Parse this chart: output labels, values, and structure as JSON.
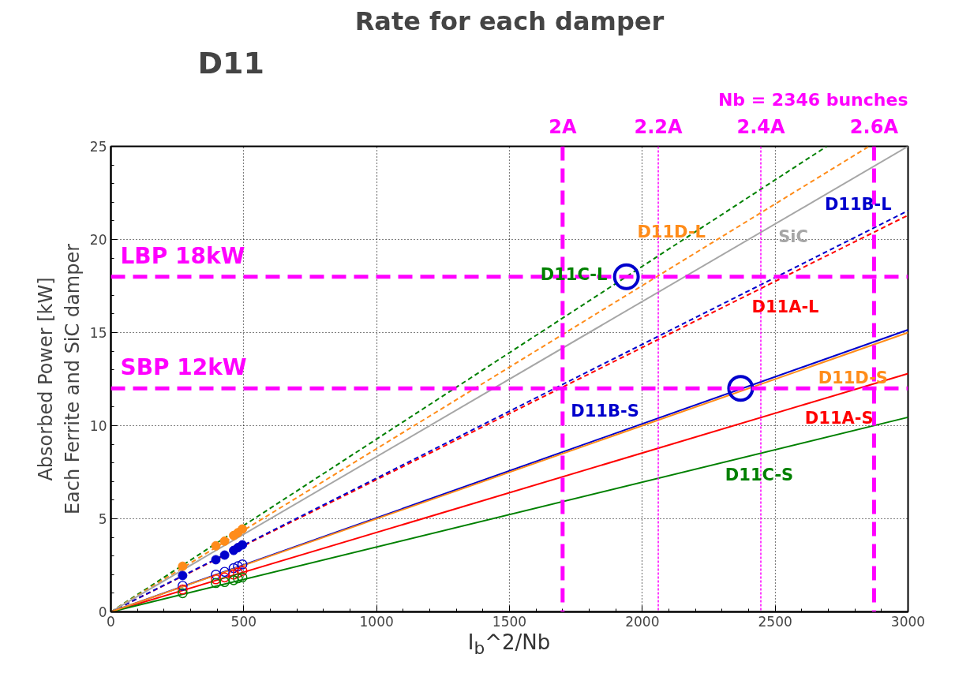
{
  "chart_data": {
    "type": "line",
    "title": "Rate for each damper",
    "subtitle": "D11",
    "xlabel": "I$_{b}$^2/Nb",
    "ylabel": "Absorbed Power [kW]\nEach Ferrite and SiC damper",
    "xlim": [
      0,
      3000
    ],
    "ylim": [
      0,
      25
    ],
    "xticks": [
      0,
      500,
      1000,
      1500,
      2000,
      2500,
      3000
    ],
    "yticks": [
      0,
      5,
      10,
      15,
      20,
      25
    ],
    "grid": true,
    "series": [
      {
        "color": "#ff0000",
        "line_style": "dashed",
        "x": [
          0,
          3000
        ],
        "values": [
          0,
          21.3
        ]
      },
      {
        "color": "#0000cc",
        "line_style": "dashed",
        "x": [
          0,
          3000
        ],
        "values": [
          0,
          21.55
        ]
      },
      {
        "color": "#008000",
        "line_style": "dashed",
        "x": [
          0,
          2694
        ],
        "values": [
          0,
          25
        ]
      },
      {
        "color": "#ff8c1a",
        "line_style": "dashed",
        "x": [
          0,
          2853
        ],
        "values": [
          0,
          25
        ]
      },
      {
        "color": "#a6a6a6",
        "line_style": "solid",
        "x": [
          0,
          3000
        ],
        "values": [
          0,
          25
        ]
      },
      {
        "color": "#ff0000",
        "line_style": "solid",
        "x": [
          0,
          3000
        ],
        "values": [
          0,
          12.8
        ]
      },
      {
        "color": "#0000cc",
        "line_style": "solid",
        "x": [
          0,
          3000
        ],
        "values": [
          0,
          15.15
        ]
      },
      {
        "color": "#008000",
        "line_style": "solid",
        "x": [
          0,
          3000
        ],
        "values": [
          0,
          10.45
        ]
      },
      {
        "color": "#ff8c1a",
        "line_style": "solid",
        "x": [
          0,
          3000
        ],
        "values": [
          0,
          15.0
        ]
      },
      {
        "type": "scatter",
        "color": "#ff8c1a",
        "x": [
          270,
          395,
          428,
          462,
          478,
          495
        ],
        "values": [
          2.45,
          3.55,
          3.8,
          4.1,
          4.25,
          4.45
        ]
      },
      {
        "type": "scatter",
        "color": "#0000cc",
        "x": [
          270,
          395,
          428,
          462,
          478,
          495
        ],
        "values": [
          1.95,
          2.8,
          3.05,
          3.3,
          3.45,
          3.6
        ]
      },
      {
        "type": "bubble",
        "color": "#0000cc",
        "x": [
          270,
          395,
          428,
          462,
          478,
          495
        ],
        "values": [
          1.4,
          2.0,
          2.15,
          2.35,
          2.45,
          2.55
        ],
        "sizes": [
          0.14,
          0.14,
          0.14,
          0.14,
          0.14,
          0.14
        ]
      },
      {
        "type": "bubble",
        "color": "#ff0000",
        "x": [
          270,
          395,
          428,
          462,
          478,
          495
        ],
        "values": [
          1.2,
          1.75,
          1.85,
          2.0,
          2.1,
          2.2
        ],
        "sizes": [
          0.14,
          0.14,
          0.14,
          0.14,
          0.14,
          0.14
        ]
      },
      {
        "type": "bubble",
        "color": "#008000",
        "x": [
          270,
          395,
          428,
          462,
          478,
          495
        ],
        "values": [
          1.0,
          1.55,
          1.6,
          1.7,
          1.8,
          1.85
        ],
        "sizes": [
          0.14,
          0.14,
          0.14,
          0.14,
          0.14,
          0.14
        ]
      },
      {
        "type": "bubble",
        "color": "#0000cc",
        "x": [
          1940,
          2370
        ],
        "values": [
          18,
          12
        ],
        "sizes": [
          1,
          1
        ]
      }
    ],
    "ref_lines": [
      {
        "axis": "x",
        "value": 1700,
        "label": "2A",
        "color": "#ff00ff",
        "line_style": "dashed"
      },
      {
        "axis": "x",
        "value": 2060,
        "label": "2.2A",
        "color": "#ff00ff",
        "line_style": "dotted"
      },
      {
        "axis": "x",
        "value": 2446,
        "label": "2.4A",
        "color": "#ff00ff",
        "line_style": "dotted"
      },
      {
        "axis": "x",
        "value": 2872,
        "label": "2.6A",
        "color": "#ff00ff",
        "line_style": "dashed"
      },
      {
        "axis": "y",
        "value": 18,
        "label": "LBP 18kW",
        "color": "#ff00ff",
        "line_style": "dashed"
      },
      {
        "axis": "y",
        "value": 12,
        "label": "SBP 12kW",
        "color": "#ff00ff",
        "line_style": "dashed"
      }
    ],
    "annotations": [
      {
        "text": "D11A-L",
        "x": 2400,
        "y": 17.04
      },
      {
        "text": "D11B-L",
        "x": 2950,
        "y": 21.19
      },
      {
        "text": "D11C-L",
        "x": 1880,
        "y": 17.45
      },
      {
        "text": "D11D-L",
        "x": 2250,
        "y": 19.72
      },
      {
        "text": "SiC",
        "x": 2500,
        "y": 20.83
      },
      {
        "text": "D11A-S",
        "x": 2600,
        "y": 11.09
      },
      {
        "text": "D11B-S",
        "x": 2000,
        "y": 10.1
      },
      {
        "text": "D11C-S",
        "x": 2300,
        "y": 8.01
      },
      {
        "text": "D11D-S",
        "x": 2650,
        "y": 13.25
      },
      "Nb = 2346 bunches"
    ]
  }
}
